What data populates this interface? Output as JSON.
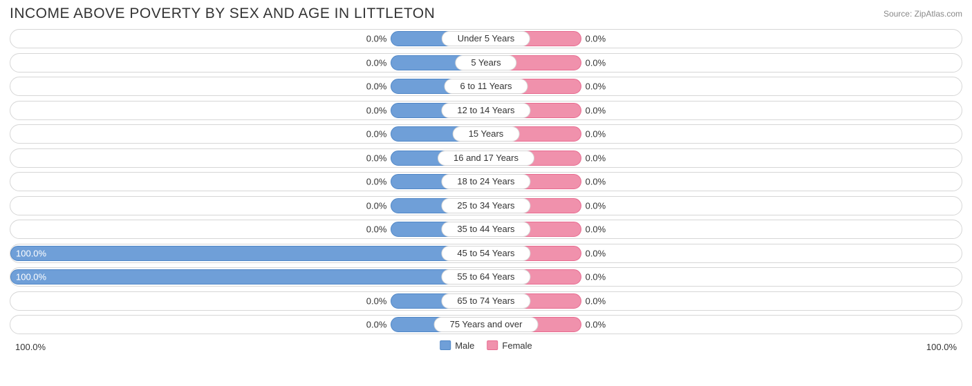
{
  "title": "INCOME ABOVE POVERTY BY SEX AND AGE IN LITTLETON",
  "source": "Source: ZipAtlas.com",
  "chart": {
    "type": "diverging-bar",
    "male_color": "#6f9fd8",
    "male_border": "#4f86c6",
    "female_color": "#f091ac",
    "female_border": "#e76a8f",
    "track_border": "#d6d6d6",
    "track_bg": "#ffffff",
    "text_color": "#333333",
    "min_bar_pct": 10,
    "axis_left": "100.0%",
    "axis_right": "100.0%",
    "legend": [
      {
        "label": "Male",
        "color": "#6f9fd8",
        "border": "#4f86c6"
      },
      {
        "label": "Female",
        "color": "#f091ac",
        "border": "#e76a8f"
      }
    ],
    "categories": [
      {
        "label": "Under 5 Years",
        "male": 0.0,
        "female": 0.0,
        "male_text": "0.0%",
        "female_text": "0.0%"
      },
      {
        "label": "5 Years",
        "male": 0.0,
        "female": 0.0,
        "male_text": "0.0%",
        "female_text": "0.0%"
      },
      {
        "label": "6 to 11 Years",
        "male": 0.0,
        "female": 0.0,
        "male_text": "0.0%",
        "female_text": "0.0%"
      },
      {
        "label": "12 to 14 Years",
        "male": 0.0,
        "female": 0.0,
        "male_text": "0.0%",
        "female_text": "0.0%"
      },
      {
        "label": "15 Years",
        "male": 0.0,
        "female": 0.0,
        "male_text": "0.0%",
        "female_text": "0.0%"
      },
      {
        "label": "16 and 17 Years",
        "male": 0.0,
        "female": 0.0,
        "male_text": "0.0%",
        "female_text": "0.0%"
      },
      {
        "label": "18 to 24 Years",
        "male": 0.0,
        "female": 0.0,
        "male_text": "0.0%",
        "female_text": "0.0%"
      },
      {
        "label": "25 to 34 Years",
        "male": 0.0,
        "female": 0.0,
        "male_text": "0.0%",
        "female_text": "0.0%"
      },
      {
        "label": "35 to 44 Years",
        "male": 0.0,
        "female": 0.0,
        "male_text": "0.0%",
        "female_text": "0.0%"
      },
      {
        "label": "45 to 54 Years",
        "male": 100.0,
        "female": 0.0,
        "male_text": "100.0%",
        "female_text": "0.0%"
      },
      {
        "label": "55 to 64 Years",
        "male": 100.0,
        "female": 0.0,
        "male_text": "100.0%",
        "female_text": "0.0%"
      },
      {
        "label": "65 to 74 Years",
        "male": 0.0,
        "female": 0.0,
        "male_text": "0.0%",
        "female_text": "0.0%"
      },
      {
        "label": "75 Years and over",
        "male": 0.0,
        "female": 0.0,
        "male_text": "0.0%",
        "female_text": "0.0%"
      }
    ]
  }
}
